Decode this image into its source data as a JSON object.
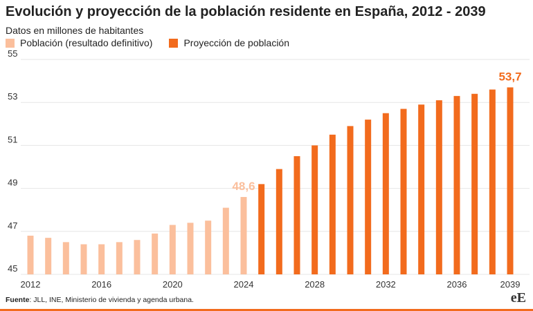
{
  "title": "Evolución y proyección de la población residente en España, 2012 - 2039",
  "subtitle": "Datos en millones de habitantes",
  "colors": {
    "historical": "#fbbf9c",
    "projection": "#f26b1d",
    "grid": "#e6e6e6"
  },
  "chart_data": {
    "type": "bar",
    "title": "Evolución y proyección de la población residente en España, 2012 - 2039",
    "ylabel": "Datos en millones de habitantes",
    "xlabel": "",
    "ylim": [
      45,
      55
    ],
    "yticks": [
      "45",
      "47",
      "49",
      "51",
      "53",
      "55"
    ],
    "xticks": [
      "2012",
      "2016",
      "2020",
      "2024",
      "2028",
      "2032",
      "2036",
      "2039"
    ],
    "legend": "top-left",
    "series": [
      {
        "name": "Población (resultado definitivo)",
        "color": "#fbbf9c",
        "x": [
          2012,
          2013,
          2014,
          2015,
          2016,
          2017,
          2018,
          2019,
          2020,
          2021,
          2022,
          2023,
          2024
        ],
        "values": [
          46.8,
          46.7,
          46.5,
          46.4,
          46.4,
          46.5,
          46.6,
          46.9,
          47.3,
          47.4,
          47.5,
          48.1,
          48.6
        ]
      },
      {
        "name": "Proyección de población",
        "color": "#f26b1d",
        "x": [
          2025,
          2026,
          2027,
          2028,
          2029,
          2030,
          2031,
          2032,
          2033,
          2034,
          2035,
          2036,
          2037,
          2038,
          2039
        ],
        "values": [
          49.2,
          49.9,
          50.5,
          51.0,
          51.5,
          51.9,
          52.2,
          52.5,
          52.7,
          52.9,
          53.1,
          53.3,
          53.4,
          53.6,
          53.7
        ]
      }
    ],
    "annotations": [
      {
        "text": "48,6",
        "x": 2024,
        "series": 0
      },
      {
        "text": "53,7",
        "x": 2039,
        "series": 1
      }
    ]
  },
  "legend_labels": {
    "historical": "Población (resultado definitivo)",
    "projection": "Proyección de población"
  },
  "footer": {
    "source_label": "Fuente",
    "source_text": ": JLL, INE, Ministerio de vivienda y agenda urbana."
  },
  "brand": "eE"
}
